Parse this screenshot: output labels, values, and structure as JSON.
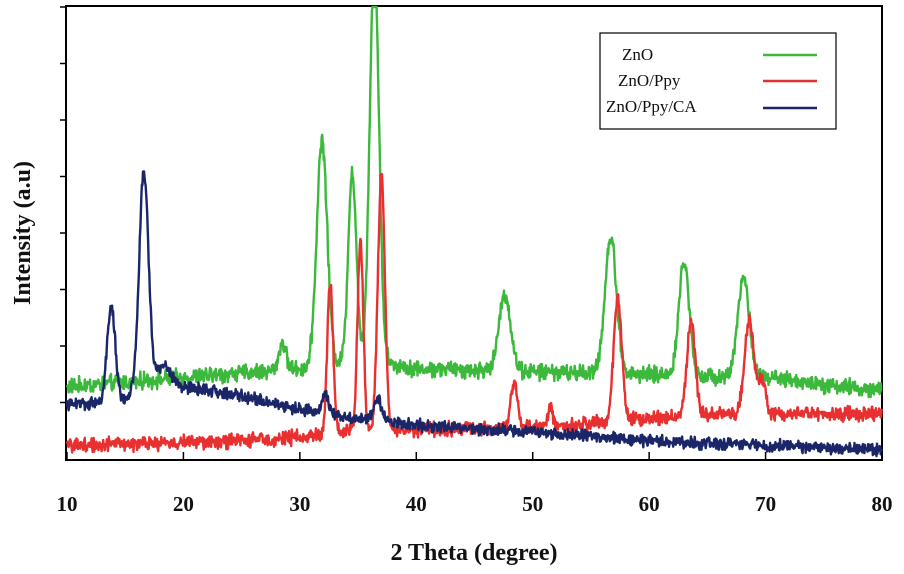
{
  "chart_data": {
    "type": "line",
    "title": "",
    "xlabel": "2 Theta (degree)",
    "ylabel": "Intensity (a.u)",
    "xlim": [
      10,
      80
    ],
    "ylim": [
      0,
      100
    ],
    "x_ticks": [
      10,
      20,
      30,
      40,
      50,
      60,
      70,
      80
    ],
    "x_tick_labels": [
      "10",
      "20",
      "30",
      "40",
      "50",
      "60",
      "70",
      "80"
    ],
    "y_minor_ticks": 8,
    "legend_position": "top-right",
    "series": [
      {
        "name": "ZnO",
        "color": "#3cb93c",
        "baseline": [
          [
            10,
            16
          ],
          [
            30,
            20
          ],
          [
            33,
            21
          ],
          [
            36,
            22
          ],
          [
            40,
            20
          ],
          [
            55,
            19
          ],
          [
            70,
            18
          ],
          [
            80,
            15
          ]
        ],
        "noise": 2.2,
        "peaks": [
          {
            "x": 28.5,
            "h": 6,
            "w": 0.3
          },
          {
            "x": 31.9,
            "h": 50,
            "w": 0.45
          },
          {
            "x": 34.5,
            "h": 42,
            "w": 0.35
          },
          {
            "x": 36.4,
            "h": 88,
            "w": 0.4
          },
          {
            "x": 47.6,
            "h": 17,
            "w": 0.5
          },
          {
            "x": 56.7,
            "h": 30,
            "w": 0.5
          },
          {
            "x": 63.0,
            "h": 25,
            "w": 0.45
          },
          {
            "x": 68.1,
            "h": 22,
            "w": 0.5
          }
        ]
      },
      {
        "name": "ZnO/Ppy",
        "color": "#e83030",
        "baseline": [
          [
            10,
            3
          ],
          [
            25,
            4
          ],
          [
            31,
            5
          ],
          [
            33,
            6
          ],
          [
            40,
            6.5
          ],
          [
            50,
            7
          ],
          [
            55,
            8
          ],
          [
            60,
            9
          ],
          [
            65,
            10
          ],
          [
            70,
            10
          ],
          [
            80,
            10
          ]
        ],
        "noise": 1.9,
        "peaks": [
          {
            "x": 32.6,
            "h": 33,
            "w": 0.25
          },
          {
            "x": 35.2,
            "h": 42,
            "w": 0.25
          },
          {
            "x": 37.0,
            "h": 57,
            "w": 0.3
          },
          {
            "x": 48.4,
            "h": 10,
            "w": 0.3
          },
          {
            "x": 51.5,
            "h": 4,
            "w": 0.2
          },
          {
            "x": 57.3,
            "h": 27,
            "w": 0.35
          },
          {
            "x": 63.6,
            "h": 21,
            "w": 0.35
          },
          {
            "x": 68.6,
            "h": 21,
            "w": 0.4
          },
          {
            "x": 69.7,
            "h": 7,
            "w": 0.3
          }
        ]
      },
      {
        "name": "ZnO/Ppy/CA",
        "color": "#1a2668",
        "baseline": [
          [
            10,
            12
          ],
          [
            15,
            13
          ],
          [
            18,
            18
          ],
          [
            20,
            16
          ],
          [
            25,
            14
          ],
          [
            30,
            11
          ],
          [
            35,
            9
          ],
          [
            40,
            7.5
          ],
          [
            50,
            6
          ],
          [
            60,
            4
          ],
          [
            70,
            3
          ],
          [
            80,
            2
          ]
        ],
        "noise": 1.6,
        "peaks": [
          {
            "x": 13.8,
            "h": 21,
            "w": 0.35
          },
          {
            "x": 16.6,
            "h": 48,
            "w": 0.4
          },
          {
            "x": 18.4,
            "h": 3,
            "w": 0.5
          },
          {
            "x": 32.2,
            "h": 4,
            "w": 0.3
          },
          {
            "x": 36.7,
            "h": 5,
            "w": 0.35
          }
        ]
      }
    ]
  }
}
